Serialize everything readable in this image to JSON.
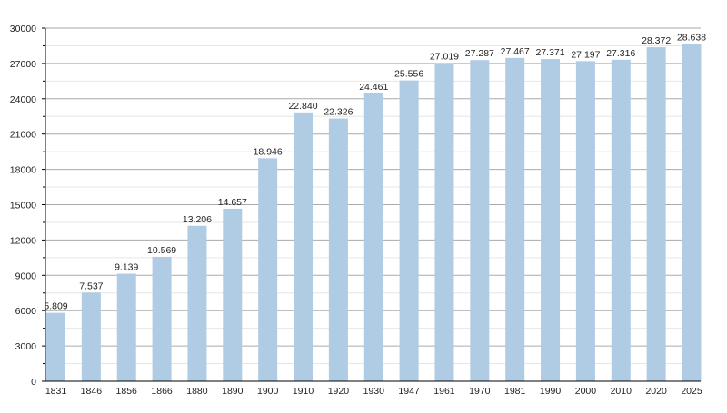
{
  "chart_data": {
    "type": "bar",
    "title": "",
    "xlabel": "",
    "ylabel": "",
    "ylim": [
      0,
      30000
    ],
    "yticks": [
      0,
      3000,
      6000,
      9000,
      12000,
      15000,
      18000,
      21000,
      24000,
      27000,
      30000
    ],
    "grid": true,
    "bar_color": "#b0cbe4",
    "categories": [
      "1831",
      "1846",
      "1856",
      "1866",
      "1880",
      "1890",
      "1900",
      "1910",
      "1920",
      "1930",
      "1947",
      "1961",
      "1970",
      "1981",
      "1990",
      "2000",
      "2010",
      "2020",
      "2025"
    ],
    "values": [
      5809,
      7537,
      9139,
      10569,
      13206,
      14657,
      18946,
      22840,
      22326,
      24461,
      25556,
      27019,
      27287,
      27467,
      27371,
      27197,
      27316,
      28372,
      28638
    ],
    "labels": [
      "5.809",
      "7.537",
      "9.139",
      "10.569",
      "13.206",
      "14.657",
      "18.946",
      "22.840",
      "22.326",
      "24.461",
      "25.556",
      "27.019",
      "27.287",
      "27.467",
      "27.371",
      "27.197",
      "27.316",
      "28.372",
      "28.638"
    ]
  }
}
